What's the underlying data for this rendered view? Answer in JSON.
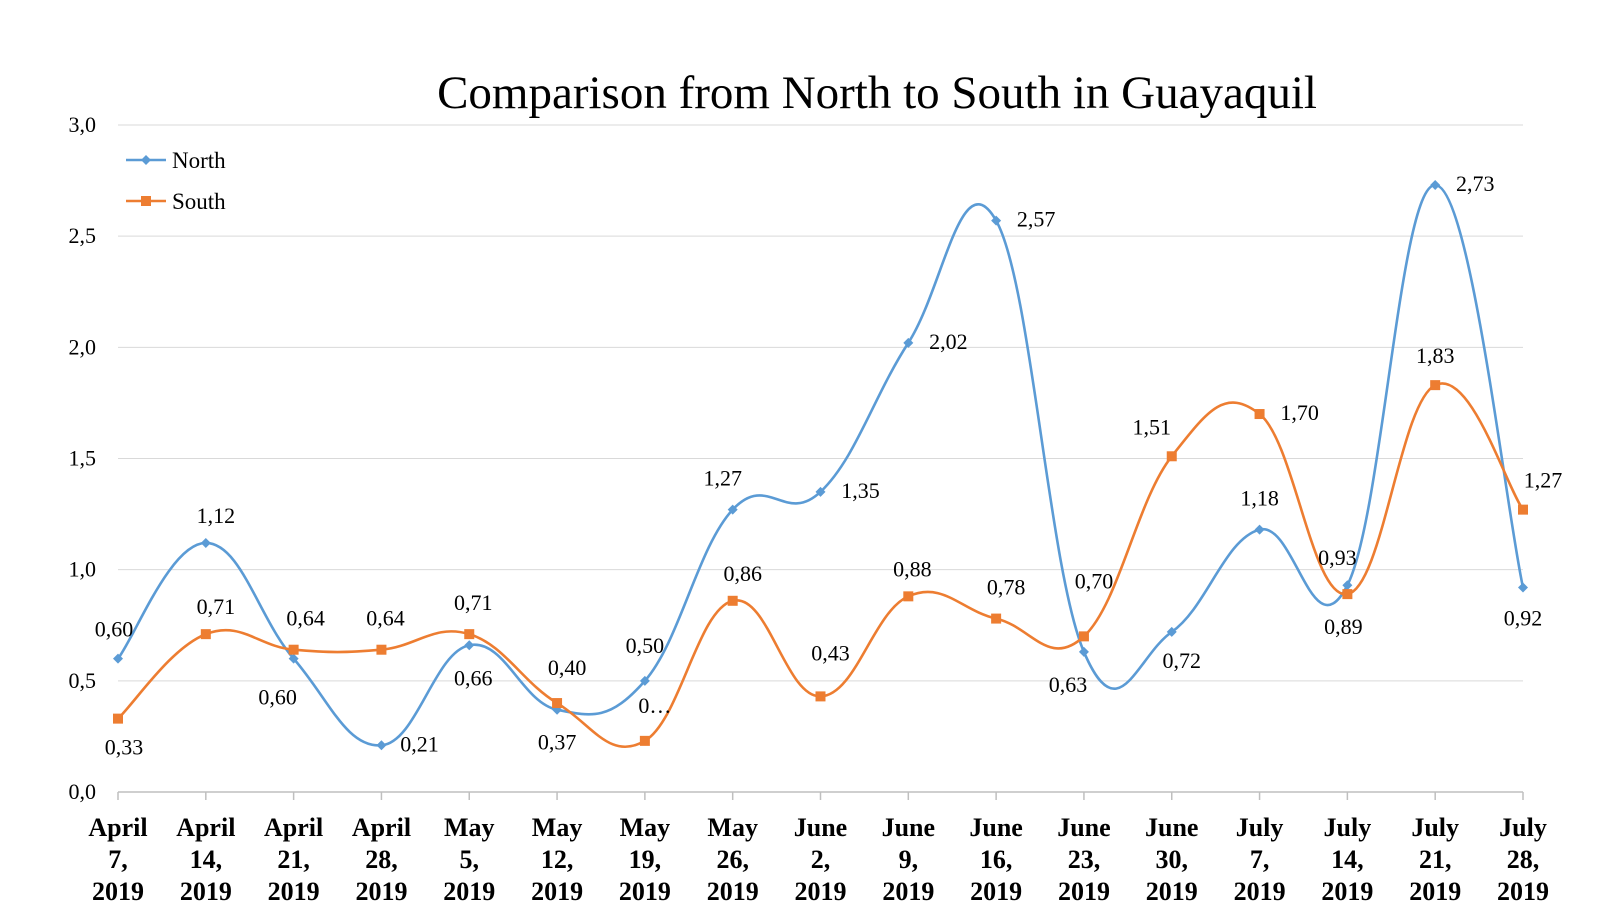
{
  "chart_data": {
    "type": "line",
    "title": "Comparison from North to South in Guayaquil",
    "xlabel": "",
    "ylabel": "",
    "ylim": [
      0,
      3
    ],
    "yticks": [
      "0,0",
      "0,5",
      "1,0",
      "1,5",
      "2,0",
      "2,5",
      "3,0"
    ],
    "ytick_values": [
      0,
      0.5,
      1.0,
      1.5,
      2.0,
      2.5,
      3.0
    ],
    "grid": "horizontal",
    "smooth": true,
    "legend_position": "top-left",
    "categories": [
      [
        "April",
        "7,",
        "2019"
      ],
      [
        "April",
        "14,",
        "2019"
      ],
      [
        "April",
        "21,",
        "2019"
      ],
      [
        "April",
        "28,",
        "2019"
      ],
      [
        "May",
        "5,",
        "2019"
      ],
      [
        "May",
        "12,",
        "2019"
      ],
      [
        "May",
        "19,",
        "2019"
      ],
      [
        "May",
        "26,",
        "2019"
      ],
      [
        "June",
        "2,",
        "2019"
      ],
      [
        "June",
        "9,",
        "2019"
      ],
      [
        "June",
        "16,",
        "2019"
      ],
      [
        "June",
        "23,",
        "2019"
      ],
      [
        "June",
        "30,",
        "2019"
      ],
      [
        "July",
        "7,",
        "2019"
      ],
      [
        "July",
        "14,",
        "2019"
      ],
      [
        "July",
        "21,",
        "2019"
      ],
      [
        "July",
        "28,",
        "2019"
      ]
    ],
    "series": [
      {
        "name": "North",
        "color": "#5b9bd5",
        "marker": "diamond",
        "values": [
          0.6,
          1.12,
          0.6,
          0.21,
          0.66,
          0.37,
          0.5,
          1.27,
          1.35,
          2.02,
          2.57,
          0.63,
          0.72,
          1.18,
          0.93,
          2.73,
          0.92
        ],
        "labels": [
          "0,60",
          "1,12",
          "0,60",
          "0,21",
          "0,66",
          "0,37",
          "0,50",
          "1,27",
          "1,35",
          "2,02",
          "2,57",
          "0,63",
          "0,72",
          "1,18",
          "0,93",
          "2,73",
          "0,92"
        ]
      },
      {
        "name": "South",
        "color": "#ed7d31",
        "marker": "square",
        "values": [
          0.33,
          0.71,
          0.64,
          0.64,
          0.71,
          0.4,
          0.23,
          0.86,
          0.43,
          0.88,
          0.78,
          0.7,
          1.51,
          1.7,
          0.89,
          1.83,
          1.27
        ],
        "labels": [
          "0,33",
          "0,71",
          "0,64",
          "0,64",
          "0,71",
          "0,40",
          "0…",
          "0,86",
          "0,43",
          "0,88",
          "0,78",
          "0,70",
          "1,51",
          "1,70",
          "0,89",
          "1,83",
          "1,27"
        ]
      }
    ]
  }
}
